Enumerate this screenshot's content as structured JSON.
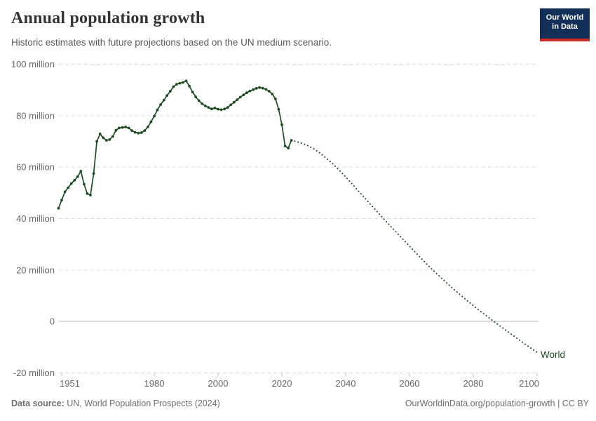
{
  "header": {
    "title": "Annual population growth",
    "subtitle": "Historic estimates with future projections based on the UN medium scenario."
  },
  "logo": {
    "line1": "Our World",
    "line2": "in Data",
    "bg_color": "#122f58",
    "accent_color": "#cd2a2a"
  },
  "footer": {
    "source_label": "Data source:",
    "source_text": " UN, World Population Prospects (2024)",
    "attribution": "OurWorldinData.org/population-growth | CC BY"
  },
  "chart_data": {
    "type": "line",
    "title": "Annual population growth",
    "subtitle": "Historic estimates with future projections based on the UN medium scenario.",
    "entity_label": "World",
    "unit": "million",
    "color": "#1d4d21",
    "grid": true,
    "legend_position": "end-of-line",
    "xlim": [
      1950,
      2101
    ],
    "ylim": [
      -20,
      100
    ],
    "x_ticks": [
      1951,
      1980,
      2000,
      2020,
      2040,
      2060,
      2080,
      2100
    ],
    "y_ticks": [
      {
        "value": 100,
        "label": "100 million"
      },
      {
        "value": 80,
        "label": "80 million"
      },
      {
        "value": 60,
        "label": "60 million"
      },
      {
        "value": 40,
        "label": "40 million"
      },
      {
        "value": 20,
        "label": "20 million"
      },
      {
        "value": 0,
        "label": "0"
      },
      {
        "value": -20,
        "label": "-20 million"
      }
    ],
    "series": [
      {
        "name": "World — historic estimates",
        "style": "solid",
        "markers": true,
        "start_year": 1950,
        "values": [
          44.0,
          47.2,
          50.4,
          52.0,
          53.6,
          54.9,
          56.3,
          58.4,
          53.4,
          49.7,
          49.1,
          57.5,
          70.0,
          72.9,
          71.4,
          70.4,
          70.7,
          71.9,
          74.3,
          75.2,
          75.4,
          75.6,
          75.2,
          74.2,
          73.5,
          73.2,
          73.4,
          74.2,
          75.6,
          77.6,
          79.8,
          82.2,
          84.3,
          86.0,
          87.8,
          89.5,
          91.2,
          92.2,
          92.6,
          92.9,
          93.5,
          91.5,
          89.2,
          87.3,
          85.8,
          84.6,
          83.8,
          83.2,
          82.6,
          83.0,
          82.5,
          82.3,
          82.6,
          83.2,
          84.2,
          85.2,
          86.2,
          87.2,
          88.1,
          88.9,
          89.6,
          90.1,
          90.6,
          90.9,
          90.7,
          90.2,
          89.5,
          88.4,
          86.5,
          82.5,
          76.5,
          68.2,
          67.4,
          70.4
        ]
      },
      {
        "name": "World — UN medium scenario projection",
        "style": "dotted",
        "markers": false,
        "points": [
          [
            2023,
            70.4
          ],
          [
            2024,
            70.1
          ],
          [
            2026,
            69.4
          ],
          [
            2028,
            68.4
          ],
          [
            2030,
            67.1
          ],
          [
            2032,
            65.4
          ],
          [
            2034,
            63.4
          ],
          [
            2036,
            61.2
          ],
          [
            2038,
            58.8
          ],
          [
            2040,
            56.2
          ],
          [
            2042,
            53.5
          ],
          [
            2044,
            50.7
          ],
          [
            2046,
            48.0
          ],
          [
            2048,
            45.2
          ],
          [
            2050,
            42.5
          ],
          [
            2052,
            39.8
          ],
          [
            2054,
            37.1
          ],
          [
            2056,
            34.5
          ],
          [
            2058,
            31.9
          ],
          [
            2060,
            29.3
          ],
          [
            2062,
            26.7
          ],
          [
            2064,
            24.1
          ],
          [
            2066,
            21.6
          ],
          [
            2068,
            19.2
          ],
          [
            2070,
            16.9
          ],
          [
            2072,
            14.6
          ],
          [
            2074,
            12.4
          ],
          [
            2076,
            10.3
          ],
          [
            2078,
            8.2
          ],
          [
            2080,
            6.2
          ],
          [
            2082,
            4.2
          ],
          [
            2084,
            2.3
          ],
          [
            2086,
            0.4
          ],
          [
            2088,
            -1.4
          ],
          [
            2090,
            -3.2
          ],
          [
            2092,
            -5.0
          ],
          [
            2094,
            -6.8
          ],
          [
            2096,
            -8.6
          ],
          [
            2098,
            -10.3
          ],
          [
            2100,
            -12.0
          ]
        ]
      }
    ]
  }
}
